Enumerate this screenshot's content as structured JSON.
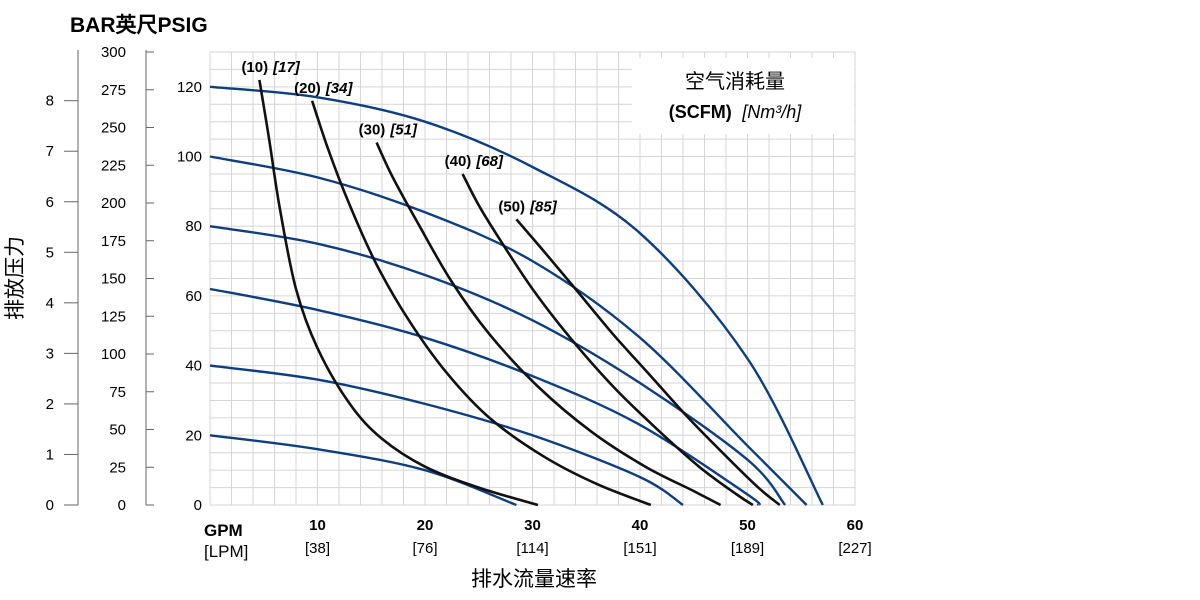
{
  "chart_data": {
    "type": "line",
    "title_units": "BAR英尺PSIG",
    "ylabel": "排放压力",
    "xlabel": "排水流量速率",
    "x_unit_primary": "GPM",
    "x_unit_secondary": "[LPM]",
    "xlim": [
      0,
      60
    ],
    "ylim": [
      0,
      130
    ],
    "x_ticks": [
      {
        "gpm": "10",
        "lpm": "[38]"
      },
      {
        "gpm": "20",
        "lpm": "[76]"
      },
      {
        "gpm": "30",
        "lpm": "[114]"
      },
      {
        "gpm": "40",
        "lpm": "[151]"
      },
      {
        "gpm": "50",
        "lpm": "[189]"
      },
      {
        "gpm": "60",
        "lpm": "[227]"
      }
    ],
    "y_ticks_psi": [
      "0",
      "20",
      "40",
      "60",
      "80",
      "100",
      "120"
    ],
    "y_ticks_feet": [
      "0",
      "25",
      "50",
      "75",
      "100",
      "125",
      "150",
      "175",
      "200",
      "225",
      "250",
      "275",
      "300"
    ],
    "y_ticks_bar": [
      "0",
      "1",
      "2",
      "3",
      "4",
      "5",
      "6",
      "7",
      "8"
    ],
    "legend": {
      "title": "空气消耗量",
      "sub_bold": "(SCFM)",
      "sub_italic": "[Nm³/h]"
    },
    "pressure_series": [
      {
        "psi": 120,
        "points": [
          [
            0,
            120
          ],
          [
            10,
            117
          ],
          [
            20,
            110
          ],
          [
            30,
            97
          ],
          [
            40,
            78
          ],
          [
            50,
            42
          ],
          [
            57,
            0
          ]
        ]
      },
      {
        "psi": 100,
        "points": [
          [
            0,
            100
          ],
          [
            10,
            94
          ],
          [
            20,
            84
          ],
          [
            30,
            70
          ],
          [
            40,
            48
          ],
          [
            50,
            17
          ],
          [
            55.5,
            0
          ]
        ]
      },
      {
        "psi": 80,
        "points": [
          [
            0,
            80
          ],
          [
            10,
            75
          ],
          [
            20,
            66
          ],
          [
            30,
            53
          ],
          [
            40,
            35
          ],
          [
            50,
            13
          ],
          [
            53.5,
            0
          ]
        ]
      },
      {
        "psi": 60,
        "points": [
          [
            0,
            62
          ],
          [
            10,
            56
          ],
          [
            20,
            48
          ],
          [
            30,
            37
          ],
          [
            40,
            23
          ],
          [
            50,
            3
          ],
          [
            51,
            0
          ]
        ]
      },
      {
        "psi": 40,
        "points": [
          [
            0,
            40
          ],
          [
            10,
            36
          ],
          [
            20,
            29
          ],
          [
            30,
            20
          ],
          [
            40,
            8
          ],
          [
            44,
            0
          ]
        ]
      },
      {
        "psi": 20,
        "points": [
          [
            0,
            20
          ],
          [
            10,
            16
          ],
          [
            20,
            10
          ],
          [
            28.5,
            0
          ]
        ]
      }
    ],
    "air_series": [
      {
        "label": "(10)",
        "label_b": "[17]",
        "points": [
          [
            4.6,
            122
          ],
          [
            5.5,
            105
          ],
          [
            6.5,
            85
          ],
          [
            8,
            62
          ],
          [
            10,
            45
          ],
          [
            13,
            29
          ],
          [
            16,
            19
          ],
          [
            20,
            11
          ],
          [
            25,
            5
          ],
          [
            30.5,
            0
          ]
        ]
      },
      {
        "label": "(20)",
        "label_b": "[34]",
        "points": [
          [
            9.5,
            116
          ],
          [
            11,
            102
          ],
          [
            13,
            86
          ],
          [
            15.5,
            69
          ],
          [
            18.5,
            53
          ],
          [
            22,
            38
          ],
          [
            26,
            25
          ],
          [
            31,
            14
          ],
          [
            36,
            6
          ],
          [
            41,
            0
          ]
        ]
      },
      {
        "label": "(30)",
        "label_b": "[51]",
        "points": [
          [
            15.5,
            104
          ],
          [
            17,
            94
          ],
          [
            19.5,
            80
          ],
          [
            22.5,
            64
          ],
          [
            26,
            49
          ],
          [
            30.5,
            34
          ],
          [
            35.5,
            21
          ],
          [
            40.5,
            11
          ],
          [
            45,
            4
          ],
          [
            47.5,
            0
          ]
        ]
      },
      {
        "label": "(40)",
        "label_b": "[68]",
        "points": [
          [
            23.5,
            95
          ],
          [
            25,
            86
          ],
          [
            27,
            76
          ],
          [
            30,
            62
          ],
          [
            33.5,
            48
          ],
          [
            37.5,
            34
          ],
          [
            41.5,
            22
          ],
          [
            45.5,
            11
          ],
          [
            49,
            3
          ],
          [
            50.5,
            0
          ]
        ]
      },
      {
        "label": "(50)",
        "label_b": "[85]",
        "points": [
          [
            28.5,
            82
          ],
          [
            31,
            73
          ],
          [
            34,
            62
          ],
          [
            37.5,
            49
          ],
          [
            41,
            37
          ],
          [
            44.5,
            25
          ],
          [
            48,
            14
          ],
          [
            51,
            5
          ],
          [
            53,
            0
          ]
        ]
      }
    ],
    "colors": {
      "pressure_curve": "#0d3f80",
      "air_curve": "#111111",
      "grid": "#d6d6d6"
    }
  }
}
